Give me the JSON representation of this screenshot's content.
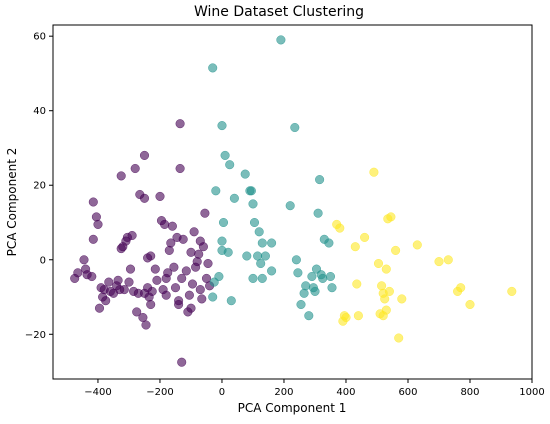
{
  "chart_data": {
    "type": "scatter",
    "title": "Wine Dataset Clustering",
    "xlabel": "PCA Component 1",
    "ylabel": "PCA Component 2",
    "xlim": [
      -545,
      1000
    ],
    "ylim": [
      -32,
      63
    ],
    "xticks": [
      -400,
      -200,
      0,
      200,
      400,
      600,
      800,
      1000
    ],
    "yticks": [
      -20,
      0,
      20,
      40,
      60
    ],
    "grid": false,
    "legend": "none",
    "series": [
      {
        "color": "#440154",
        "points": [
          [
            -475,
            -5
          ],
          [
            -465,
            -3.5
          ],
          [
            -445,
            0
          ],
          [
            -440,
            -2.5
          ],
          [
            -435,
            -4
          ],
          [
            -420,
            -4.5
          ],
          [
            -415,
            15.5
          ],
          [
            -415,
            5.5
          ],
          [
            -405,
            11.5
          ],
          [
            -400,
            9.5
          ],
          [
            -395,
            -13
          ],
          [
            -390,
            -7.5
          ],
          [
            -385,
            -10
          ],
          [
            -380,
            -8
          ],
          [
            -375,
            -11
          ],
          [
            -365,
            -6
          ],
          [
            -360,
            -8.5
          ],
          [
            -350,
            -9
          ],
          [
            -340,
            -7
          ],
          [
            -335,
            -5.5
          ],
          [
            -330,
            -8
          ],
          [
            -325,
            22.5
          ],
          [
            -325,
            3
          ],
          [
            -320,
            3.5
          ],
          [
            -315,
            -8
          ],
          [
            -310,
            5
          ],
          [
            -305,
            6
          ],
          [
            -300,
            -6
          ],
          [
            -295,
            -2.5
          ],
          [
            -290,
            6.5
          ],
          [
            -285,
            -8.5
          ],
          [
            -280,
            24.5
          ],
          [
            -275,
            -14
          ],
          [
            -270,
            -9
          ],
          [
            -265,
            17.5
          ],
          [
            -255,
            -15.5
          ],
          [
            -250,
            16.5
          ],
          [
            -250,
            28
          ],
          [
            -245,
            -17.5
          ],
          [
            -240,
            0.5
          ],
          [
            -240,
            -7.5
          ],
          [
            -235,
            -10
          ],
          [
            -230,
            1
          ],
          [
            -225,
            -8.5
          ],
          [
            -215,
            -2.5
          ],
          [
            -210,
            -5.5
          ],
          [
            -200,
            17
          ],
          [
            -195,
            10.5
          ],
          [
            -190,
            -8
          ],
          [
            -185,
            9.5
          ],
          [
            -180,
            -9.5
          ],
          [
            -175,
            -3.5
          ],
          [
            -170,
            2.5
          ],
          [
            -165,
            4.5
          ],
          [
            -160,
            9
          ],
          [
            -155,
            -2
          ],
          [
            -150,
            -7.5
          ],
          [
            -145,
            6
          ],
          [
            -140,
            -11
          ],
          [
            -135,
            36.5
          ],
          [
            -135,
            24.5
          ],
          [
            -130,
            -27.5
          ],
          [
            -130,
            -5
          ],
          [
            -125,
            5.5
          ],
          [
            -115,
            -3
          ],
          [
            -110,
            -14
          ],
          [
            -105,
            -9.5
          ],
          [
            -100,
            2
          ],
          [
            -95,
            -6.5
          ],
          [
            -90,
            7.5
          ],
          [
            -85,
            -2
          ],
          [
            -80,
            -0.5
          ],
          [
            -75,
            1.5
          ],
          [
            -70,
            -8
          ],
          [
            -65,
            -10.5
          ],
          [
            -60,
            3.5
          ],
          [
            -55,
            12.5
          ],
          [
            -50,
            -5
          ],
          [
            -45,
            -1
          ],
          [
            -40,
            -7
          ],
          [
            -250,
            -9
          ],
          [
            -230,
            -12
          ],
          [
            -180,
            -5
          ],
          [
            -140,
            -12
          ],
          [
            -100,
            -13
          ],
          [
            -70,
            5
          ]
        ]
      },
      {
        "color": "#21918c",
        "points": [
          [
            -30,
            51.5
          ],
          [
            -20,
            18.5
          ],
          [
            -30,
            -10
          ],
          [
            0,
            36
          ],
          [
            10,
            28
          ],
          [
            25,
            25.5
          ],
          [
            40,
            16.5
          ],
          [
            75,
            23
          ],
          [
            90,
            18.5
          ],
          [
            95,
            18.5
          ],
          [
            100,
            15
          ],
          [
            105,
            10
          ],
          [
            120,
            7.5
          ],
          [
            130,
            4.5
          ],
          [
            140,
            1
          ],
          [
            160,
            4.5
          ],
          [
            -10,
            -4.5
          ],
          [
            -25,
            -6
          ],
          [
            0,
            5
          ],
          [
            0,
            2.5
          ],
          [
            5,
            10
          ],
          [
            20,
            2
          ],
          [
            30,
            -11
          ],
          [
            80,
            1
          ],
          [
            100,
            -5
          ],
          [
            115,
            1
          ],
          [
            125,
            -1
          ],
          [
            130,
            -5
          ],
          [
            160,
            -3
          ],
          [
            190,
            59
          ],
          [
            220,
            14.5
          ],
          [
            235,
            35.5
          ],
          [
            240,
            0
          ],
          [
            245,
            -3.5
          ],
          [
            255,
            -12
          ],
          [
            265,
            -9
          ],
          [
            270,
            -7
          ],
          [
            280,
            -15
          ],
          [
            290,
            -4.5
          ],
          [
            295,
            -7.5
          ],
          [
            300,
            -8.5
          ],
          [
            305,
            -2.5
          ],
          [
            310,
            12.5
          ],
          [
            315,
            21.5
          ],
          [
            320,
            -4
          ],
          [
            325,
            -5
          ],
          [
            330,
            5.5
          ],
          [
            345,
            4.5
          ],
          [
            350,
            -4.5
          ],
          [
            355,
            -7.5
          ]
        ]
      },
      {
        "color": "#fde725",
        "points": [
          [
            370,
            9.5
          ],
          [
            380,
            8.5
          ],
          [
            390,
            -16.5
          ],
          [
            395,
            -15
          ],
          [
            400,
            -15.5
          ],
          [
            430,
            3.5
          ],
          [
            435,
            -6.5
          ],
          [
            440,
            -15
          ],
          [
            460,
            6
          ],
          [
            490,
            23.5
          ],
          [
            505,
            -1
          ],
          [
            510,
            -14.5
          ],
          [
            515,
            -7
          ],
          [
            520,
            -15
          ],
          [
            525,
            -10.5
          ],
          [
            530,
            -2.5
          ],
          [
            530,
            -13.5
          ],
          [
            535,
            11
          ],
          [
            545,
            11.5
          ],
          [
            560,
            2.5
          ],
          [
            570,
            -21
          ],
          [
            580,
            -10.5
          ],
          [
            630,
            4
          ],
          [
            700,
            -0.5
          ],
          [
            730,
            0
          ],
          [
            760,
            -8.5
          ],
          [
            770,
            -7.5
          ],
          [
            800,
            -12
          ],
          [
            935,
            -8.5
          ],
          [
            540,
            -8.5
          ],
          [
            520,
            -9
          ]
        ]
      }
    ]
  }
}
